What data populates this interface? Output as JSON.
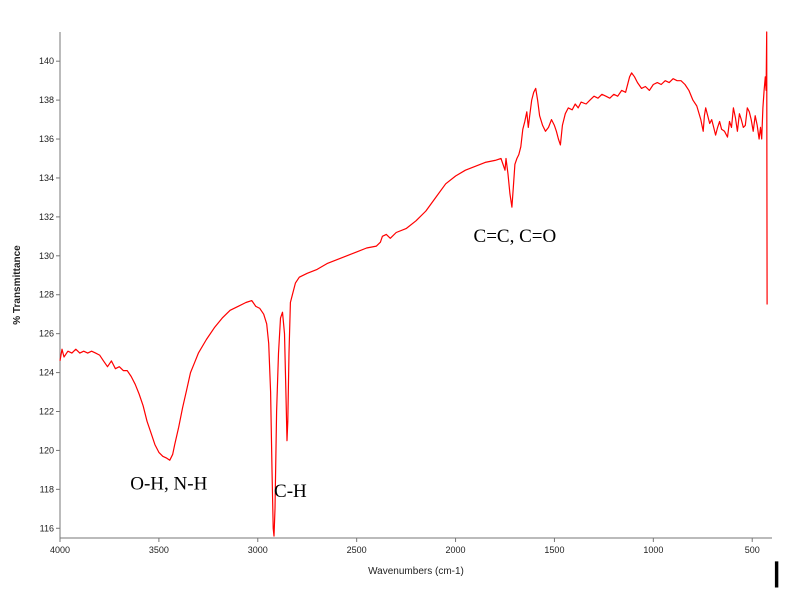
{
  "chart_data": {
    "type": "line",
    "title": "",
    "xlabel": "Wavenumbers (cm-1)",
    "ylabel": "% Transmittance",
    "xlim": [
      4000,
      400
    ],
    "ylim": [
      115.5,
      141.5
    ],
    "x_reversed": true,
    "grid": false,
    "xticks": [
      4000,
      3500,
      3000,
      2500,
      2000,
      1500,
      1000,
      500
    ],
    "yticks": [
      116,
      118,
      120,
      122,
      124,
      126,
      128,
      130,
      132,
      134,
      136,
      138,
      140
    ],
    "series": [
      {
        "color": "#ff0000",
        "points": [
          [
            4000,
            124.6
          ],
          [
            3990,
            125.2
          ],
          [
            3980,
            124.8
          ],
          [
            3960,
            125.1
          ],
          [
            3940,
            125.0
          ],
          [
            3920,
            125.2
          ],
          [
            3900,
            125.0
          ],
          [
            3880,
            125.1
          ],
          [
            3860,
            125.0
          ],
          [
            3840,
            125.1
          ],
          [
            3820,
            125.0
          ],
          [
            3800,
            124.9
          ],
          [
            3780,
            124.6
          ],
          [
            3760,
            124.3
          ],
          [
            3740,
            124.6
          ],
          [
            3720,
            124.2
          ],
          [
            3700,
            124.3
          ],
          [
            3680,
            124.1
          ],
          [
            3660,
            124.1
          ],
          [
            3640,
            123.8
          ],
          [
            3620,
            123.4
          ],
          [
            3600,
            122.9
          ],
          [
            3580,
            122.3
          ],
          [
            3560,
            121.5
          ],
          [
            3540,
            120.9
          ],
          [
            3520,
            120.3
          ],
          [
            3500,
            119.9
          ],
          [
            3480,
            119.7
          ],
          [
            3460,
            119.6
          ],
          [
            3445,
            119.5
          ],
          [
            3430,
            119.8
          ],
          [
            3420,
            120.3
          ],
          [
            3400,
            121.2
          ],
          [
            3380,
            122.2
          ],
          [
            3360,
            123.1
          ],
          [
            3340,
            124.0
          ],
          [
            3320,
            124.5
          ],
          [
            3300,
            125.0
          ],
          [
            3260,
            125.7
          ],
          [
            3220,
            126.3
          ],
          [
            3180,
            126.8
          ],
          [
            3140,
            127.2
          ],
          [
            3100,
            127.4
          ],
          [
            3060,
            127.6
          ],
          [
            3030,
            127.7
          ],
          [
            3010,
            127.4
          ],
          [
            2990,
            127.3
          ],
          [
            2970,
            127.0
          ],
          [
            2955,
            126.5
          ],
          [
            2945,
            125.5
          ],
          [
            2935,
            123.0
          ],
          [
            2928,
            119.0
          ],
          [
            2922,
            116.0
          ],
          [
            2918,
            115.6
          ],
          [
            2913,
            117.0
          ],
          [
            2905,
            122.0
          ],
          [
            2895,
            125.0
          ],
          [
            2885,
            126.8
          ],
          [
            2875,
            127.1
          ],
          [
            2865,
            126.0
          ],
          [
            2858,
            123.0
          ],
          [
            2852,
            120.5
          ],
          [
            2848,
            121.5
          ],
          [
            2842,
            125.0
          ],
          [
            2835,
            127.6
          ],
          [
            2825,
            128.0
          ],
          [
            2810,
            128.6
          ],
          [
            2790,
            128.9
          ],
          [
            2750,
            129.1
          ],
          [
            2700,
            129.3
          ],
          [
            2650,
            129.6
          ],
          [
            2600,
            129.8
          ],
          [
            2550,
            130.0
          ],
          [
            2500,
            130.2
          ],
          [
            2450,
            130.4
          ],
          [
            2400,
            130.5
          ],
          [
            2380,
            130.7
          ],
          [
            2370,
            131.0
          ],
          [
            2350,
            131.1
          ],
          [
            2330,
            130.9
          ],
          [
            2300,
            131.2
          ],
          [
            2250,
            131.4
          ],
          [
            2200,
            131.8
          ],
          [
            2150,
            132.3
          ],
          [
            2100,
            133.0
          ],
          [
            2050,
            133.7
          ],
          [
            2000,
            134.1
          ],
          [
            1950,
            134.4
          ],
          [
            1900,
            134.6
          ],
          [
            1850,
            134.8
          ],
          [
            1800,
            134.9
          ],
          [
            1770,
            135.0
          ],
          [
            1750,
            134.4
          ],
          [
            1745,
            135.0
          ],
          [
            1735,
            134.2
          ],
          [
            1725,
            133.2
          ],
          [
            1715,
            132.5
          ],
          [
            1708,
            133.5
          ],
          [
            1700,
            134.7
          ],
          [
            1690,
            135.0
          ],
          [
            1680,
            135.2
          ],
          [
            1670,
            135.6
          ],
          [
            1660,
            136.5
          ],
          [
            1650,
            136.9
          ],
          [
            1640,
            137.4
          ],
          [
            1632,
            136.6
          ],
          [
            1625,
            137.2
          ],
          [
            1615,
            138.0
          ],
          [
            1605,
            138.4
          ],
          [
            1595,
            138.6
          ],
          [
            1585,
            138.0
          ],
          [
            1575,
            137.2
          ],
          [
            1560,
            136.7
          ],
          [
            1545,
            136.4
          ],
          [
            1530,
            136.6
          ],
          [
            1515,
            137.0
          ],
          [
            1500,
            136.7
          ],
          [
            1490,
            136.4
          ],
          [
            1480,
            136.0
          ],
          [
            1470,
            135.7
          ],
          [
            1460,
            136.7
          ],
          [
            1445,
            137.3
          ],
          [
            1430,
            137.6
          ],
          [
            1410,
            137.5
          ],
          [
            1395,
            137.8
          ],
          [
            1380,
            137.6
          ],
          [
            1365,
            137.9
          ],
          [
            1340,
            137.8
          ],
          [
            1320,
            138.0
          ],
          [
            1300,
            138.2
          ],
          [
            1280,
            138.1
          ],
          [
            1260,
            138.3
          ],
          [
            1240,
            138.2
          ],
          [
            1220,
            138.1
          ],
          [
            1200,
            138.3
          ],
          [
            1180,
            138.2
          ],
          [
            1160,
            138.5
          ],
          [
            1140,
            138.4
          ],
          [
            1120,
            139.2
          ],
          [
            1110,
            139.4
          ],
          [
            1095,
            139.2
          ],
          [
            1080,
            138.9
          ],
          [
            1060,
            138.6
          ],
          [
            1040,
            138.7
          ],
          [
            1020,
            138.5
          ],
          [
            1000,
            138.8
          ],
          [
            980,
            138.9
          ],
          [
            960,
            138.8
          ],
          [
            940,
            139.0
          ],
          [
            920,
            138.9
          ],
          [
            900,
            139.1
          ],
          [
            880,
            139.0
          ],
          [
            860,
            139.0
          ],
          [
            840,
            138.8
          ],
          [
            820,
            138.5
          ],
          [
            800,
            138.0
          ],
          [
            780,
            137.7
          ],
          [
            760,
            137.0
          ],
          [
            748,
            136.4
          ],
          [
            742,
            137.2
          ],
          [
            735,
            137.6
          ],
          [
            725,
            137.2
          ],
          [
            715,
            136.8
          ],
          [
            705,
            137.0
          ],
          [
            695,
            136.6
          ],
          [
            685,
            136.2
          ],
          [
            675,
            136.6
          ],
          [
            665,
            136.9
          ],
          [
            655,
            136.5
          ],
          [
            640,
            136.4
          ],
          [
            625,
            136.1
          ],
          [
            615,
            136.9
          ],
          [
            605,
            136.6
          ],
          [
            595,
            137.6
          ],
          [
            585,
            137.1
          ],
          [
            575,
            136.4
          ],
          [
            565,
            137.3
          ],
          [
            555,
            137.0
          ],
          [
            545,
            136.6
          ],
          [
            535,
            136.7
          ],
          [
            525,
            137.6
          ],
          [
            515,
            137.4
          ],
          [
            505,
            137.0
          ],
          [
            495,
            136.4
          ],
          [
            485,
            137.2
          ],
          [
            475,
            136.7
          ],
          [
            465,
            136.0
          ],
          [
            458,
            136.6
          ],
          [
            452,
            136.0
          ],
          [
            446,
            137.6
          ],
          [
            440,
            138.5
          ],
          [
            434,
            139.2
          ],
          [
            430,
            138.5
          ],
          [
            427,
            141.5
          ],
          [
            425,
            127.5
          ]
        ]
      }
    ],
    "annotations": [
      {
        "text": "O-H, N-H",
        "x": 3450,
        "y": 118.0
      },
      {
        "text": "C-H",
        "x": 2835,
        "y": 117.6
      },
      {
        "text": "C=C, C=O",
        "x": 1700,
        "y": 130.7
      }
    ]
  }
}
